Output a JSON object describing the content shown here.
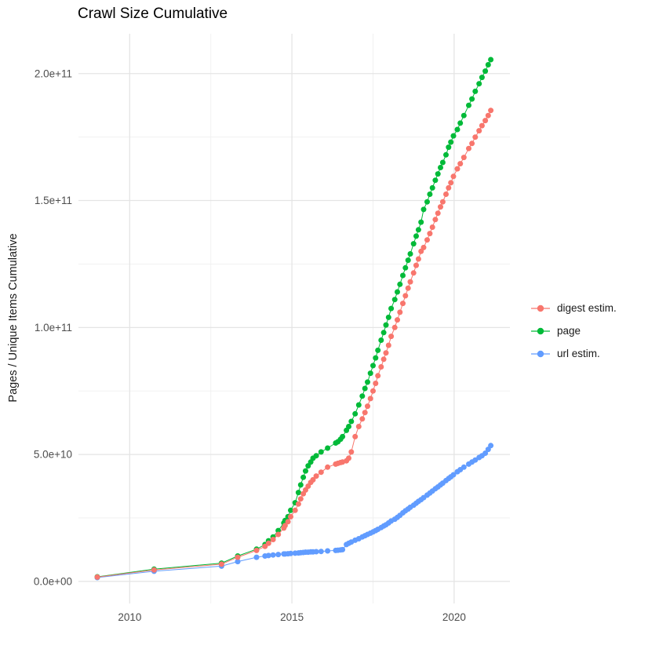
{
  "chart_data": {
    "type": "scatter",
    "title": "Crawl Size Cumulative",
    "xlabel": "",
    "ylabel": "Pages / Unique Items Cumulative",
    "values_unit": "1e9 items (billions)",
    "xlim": [
      2008.42,
      2021.72
    ],
    "ylim_billions": [
      -8.7,
      215.7
    ],
    "grid": "major+minor, light gray on white background",
    "legend_position": "right-center, outside panel",
    "x_major_ticks": [
      {
        "v": 2010,
        "label": "2010"
      },
      {
        "v": 2015,
        "label": "2015"
      },
      {
        "v": 2020,
        "label": "2020"
      }
    ],
    "x_minor_ticks": [
      2012.5,
      2017.5
    ],
    "y_major_ticks": [
      {
        "v": 0,
        "label": "0.0e+00"
      },
      {
        "v": 50,
        "label": "5.0e+10"
      },
      {
        "v": 100,
        "label": "1.0e+11"
      },
      {
        "v": 150,
        "label": "1.5e+11"
      },
      {
        "v": 200,
        "label": "2.0e+11"
      }
    ],
    "y_minor_ticks": [
      25,
      75,
      125,
      175
    ],
    "x": [
      2009.0,
      2010.75,
      2012.83,
      2013.33,
      2013.91,
      2014.17,
      2014.28,
      2014.42,
      2014.58,
      2014.75,
      2014.79,
      2014.88,
      2014.96,
      2015.1,
      2015.2,
      2015.27,
      2015.35,
      2015.42,
      2015.5,
      2015.58,
      2015.65,
      2015.75,
      2015.9,
      2016.1,
      2016.35,
      2016.42,
      2016.5,
      2016.56,
      2016.68,
      2016.75,
      2016.83,
      2016.95,
      2017.06,
      2017.17,
      2017.25,
      2017.33,
      2017.42,
      2017.5,
      2017.58,
      2017.65,
      2017.75,
      2017.83,
      2017.9,
      2017.98,
      2018.06,
      2018.17,
      2018.25,
      2018.33,
      2018.42,
      2018.5,
      2018.58,
      2018.65,
      2018.75,
      2018.83,
      2018.9,
      2018.98,
      2019.06,
      2019.17,
      2019.25,
      2019.33,
      2019.42,
      2019.5,
      2019.58,
      2019.65,
      2019.75,
      2019.83,
      2019.9,
      2019.98,
      2020.1,
      2020.19,
      2020.3,
      2020.45,
      2020.55,
      2020.65,
      2020.77,
      2020.86,
      2020.96,
      2021.05,
      2021.13
    ],
    "series": [
      {
        "name": "digest estim.",
        "color": "#F8766D",
        "values_billions": [
          1.7,
          4.5,
          6.8,
          9.5,
          12.2,
          13.8,
          15,
          16.5,
          18.5,
          21,
          22,
          23.5,
          25.5,
          28,
          30.5,
          32.5,
          34.5,
          36,
          37.5,
          39,
          40,
          41.5,
          43,
          45,
          46.2,
          46.5,
          46.8,
          47,
          47.5,
          48.5,
          51,
          57,
          61,
          64,
          66.5,
          69,
          72,
          75,
          78,
          81,
          84.5,
          87.5,
          90,
          93,
          96.5,
          100,
          103,
          106,
          109.5,
          112.5,
          115.5,
          118,
          121.5,
          124.5,
          127,
          130,
          131.5,
          134.5,
          137,
          139.5,
          142.5,
          145,
          147.5,
          149.5,
          152.5,
          155,
          157,
          159.5,
          162.5,
          164.5,
          167,
          170.5,
          172.5,
          175,
          177.5,
          179.5,
          181.5,
          183.5,
          185.5
        ]
      },
      {
        "name": "page",
        "color": "#00BA38",
        "values_billions": [
          1.8,
          4.8,
          7.2,
          10,
          12.7,
          14.5,
          16,
          17.5,
          20,
          23,
          24,
          25.5,
          28,
          31,
          35,
          38,
          41,
          43.5,
          45.5,
          47,
          48.5,
          49.5,
          51,
          52.5,
          54.5,
          55,
          56,
          57,
          59.5,
          61,
          63,
          66,
          69.5,
          73,
          76,
          78.5,
          82,
          85,
          88,
          91,
          95,
          98,
          101,
          104,
          107.5,
          111,
          114,
          117,
          120.5,
          123.5,
          126.5,
          129,
          133,
          136,
          138.5,
          141.5,
          146.5,
          149.5,
          152.5,
          155,
          158,
          160.5,
          163,
          165,
          168,
          171,
          173,
          175.5,
          178,
          180.5,
          183.5,
          187.5,
          190,
          193,
          196,
          198.5,
          201,
          203.5,
          205.5
        ]
      },
      {
        "name": "url estim.",
        "color": "#619CFF",
        "values_billions": [
          1.5,
          4,
          6,
          7.8,
          9.5,
          10,
          10.2,
          10.4,
          10.6,
          10.8,
          10.8,
          10.9,
          11,
          11.1,
          11.2,
          11.3,
          11.4,
          11.5,
          11.5,
          11.6,
          11.6,
          11.7,
          11.8,
          12,
          12.2,
          12.3,
          12.4,
          12.5,
          14.5,
          15,
          15.5,
          16.2,
          16.8,
          17.5,
          18,
          18.5,
          19,
          19.5,
          20,
          20.5,
          21.2,
          21.8,
          22.3,
          23,
          23.8,
          24.5,
          25.2,
          26,
          27,
          27.8,
          28.5,
          29.2,
          30,
          30.8,
          31.5,
          32.2,
          33,
          34,
          34.8,
          35.6,
          36.5,
          37.2,
          38,
          38.7,
          39.7,
          40.5,
          41.2,
          42,
          43.2,
          44,
          45,
          46.2,
          47,
          47.8,
          48.8,
          49.5,
          50.5,
          52,
          53.5
        ]
      }
    ],
    "draw_order": [
      2,
      1,
      0
    ],
    "colors": {
      "grid_major": "#E4E4E4",
      "grid_minor": "#EFEFEF",
      "tick_label": "#4d4d4d",
      "background": "#FFFFFF"
    }
  }
}
